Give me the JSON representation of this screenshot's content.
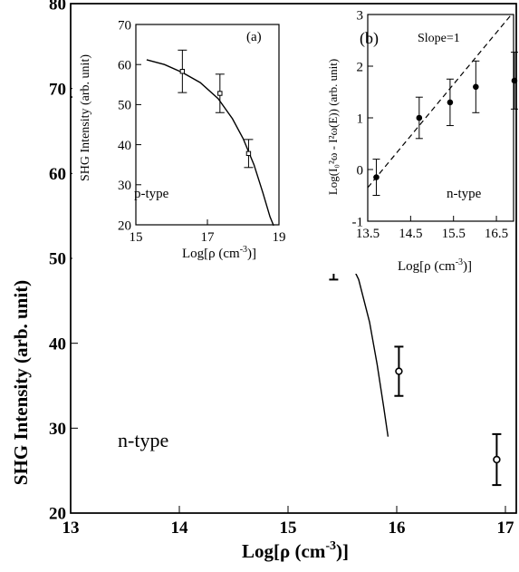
{
  "chart_data": [
    {
      "id": "main",
      "type": "scatter",
      "title": "",
      "xlabel_main": "Log[ρ (cm",
      "xlabel_sup": "-3",
      "xlabel_end": ")]",
      "ylabel": "SHG Intensity (arb. unit)",
      "annotation": "n-type",
      "xlim": [
        13,
        17.1
      ],
      "ylim": [
        20,
        80
      ],
      "xticks": [
        13,
        14,
        15,
        16,
        17
      ],
      "yticks": [
        20,
        30,
        40,
        50,
        60,
        70,
        80
      ],
      "grid": false,
      "points": [
        {
          "x": 13.7,
          "y": 68,
          "err": 5.2
        },
        {
          "x": 14.7,
          "y": 59.2,
          "err": 4.6
        },
        {
          "x": 15.42,
          "y": 51.7,
          "err": 4.2
        },
        {
          "x": 16.02,
          "y": 36.7,
          "err": 2.9
        },
        {
          "x": 16.92,
          "y": 26.3,
          "err": 3.0
        }
      ],
      "fit_curve": [
        [
          13.0,
          69.0
        ],
        [
          13.5,
          68.8
        ],
        [
          14.0,
          67.8
        ],
        [
          14.5,
          65.2
        ],
        [
          15.0,
          60.5
        ],
        [
          15.3,
          56.0
        ],
        [
          15.5,
          51.5
        ],
        [
          15.65,
          47.5
        ],
        [
          15.75,
          42.5
        ],
        [
          15.82,
          37.5
        ],
        [
          15.88,
          32.5
        ],
        [
          15.92,
          29.0
        ]
      ]
    },
    {
      "id": "a",
      "type": "scatter",
      "panel_label": "(a)",
      "xlabel_main": "Log[ρ (cm",
      "xlabel_sup": "-3",
      "xlabel_end": ")]",
      "ylabel": "SHG Intensity (arb. unit)",
      "annotation": "p-type",
      "xlim": [
        15,
        19
      ],
      "ylim": [
        20,
        70
      ],
      "xticks": [
        15,
        17,
        19
      ],
      "yticks": [
        20,
        30,
        40,
        50,
        60,
        70
      ],
      "points": [
        {
          "x": 16.3,
          "y": 58.3,
          "err": 5.3
        },
        {
          "x": 17.35,
          "y": 52.8,
          "err": 4.8
        },
        {
          "x": 18.15,
          "y": 37.8,
          "err": 3.5
        }
      ],
      "fit_curve": [
        [
          15.3,
          61.2
        ],
        [
          15.8,
          60.0
        ],
        [
          16.3,
          58.0
        ],
        [
          16.8,
          55.5
        ],
        [
          17.3,
          51.5
        ],
        [
          17.7,
          46.5
        ],
        [
          18.0,
          41.5
        ],
        [
          18.3,
          35.0
        ],
        [
          18.55,
          28.0
        ],
        [
          18.75,
          22.0
        ],
        [
          18.85,
          19.8
        ]
      ]
    },
    {
      "id": "b",
      "type": "scatter",
      "panel_label": "(b)",
      "slope_label": "Slope=1",
      "xlabel_main": "Log[ρ (cm",
      "xlabel_sup": "-3",
      "xlabel_end": ")]",
      "ylabel": "Log(I₀²ω - I²ω(E)) (arb. unit)",
      "annotation": "n-type",
      "xlim": [
        13.5,
        16.9
      ],
      "ylim": [
        -1,
        3
      ],
      "xticks": [
        13.5,
        14.5,
        15.5,
        16.5
      ],
      "yticks": [
        -1,
        0,
        1,
        2,
        3
      ],
      "points": [
        {
          "x": 13.7,
          "y": -0.15,
          "err": 0.35
        },
        {
          "x": 14.7,
          "y": 1.0,
          "err": 0.4
        },
        {
          "x": 15.42,
          "y": 1.3,
          "err": 0.45
        },
        {
          "x": 16.02,
          "y": 1.6,
          "err": 0.5
        },
        {
          "x": 16.92,
          "y": 1.72,
          "err": 0.55
        }
      ],
      "slope_line": [
        [
          13.5,
          -0.35
        ],
        [
          16.85,
          3.0
        ]
      ]
    }
  ]
}
